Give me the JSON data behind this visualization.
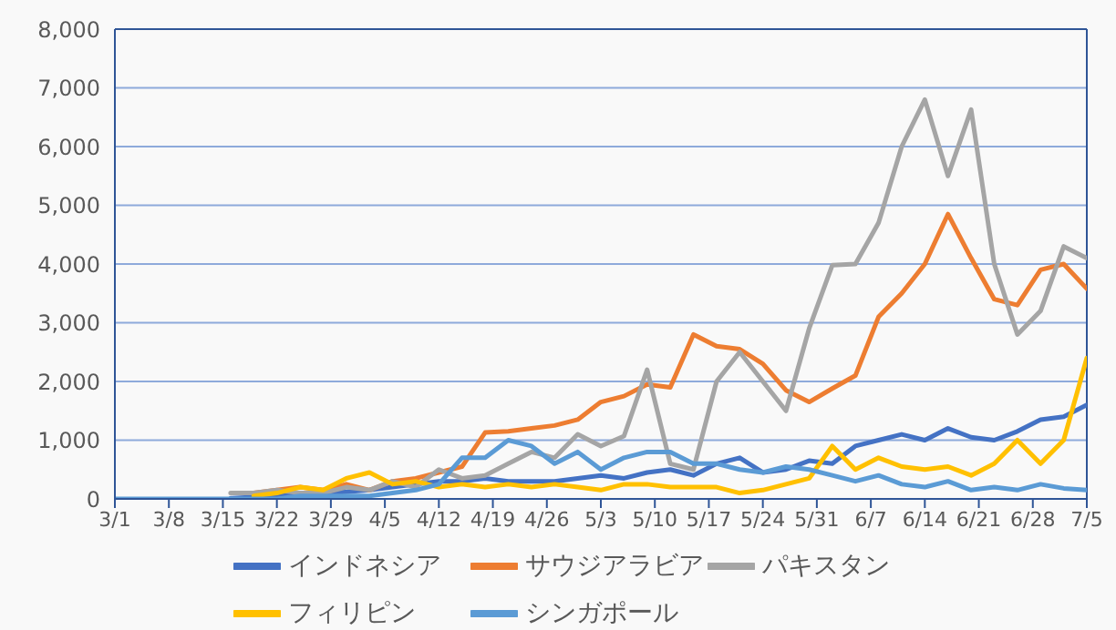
{
  "chart_data": {
    "type": "line",
    "x": [
      "--03-01",
      "--03-04",
      "--03-07",
      "--03-10",
      "--03-13",
      "--03-16",
      "--03-19",
      "--03-22",
      "--03-25",
      "--03-28",
      "--03-31",
      "--04-03",
      "--04-06",
      "--04-09",
      "--04-12",
      "--04-15",
      "--04-18",
      "--04-21",
      "--04-24",
      "--04-27",
      "--04-30",
      "--05-03",
      "--05-06",
      "--05-09",
      "--05-12",
      "--05-15",
      "--05-18",
      "--05-21",
      "--05-24",
      "--05-27",
      "--05-30",
      "--06-02",
      "--06-05",
      "--06-08",
      "--06-11",
      "--06-14",
      "--06-17",
      "--06-20",
      "--06-23",
      "--06-26",
      "--06-29",
      "--07-02",
      "--07-05"
    ],
    "series": [
      {
        "name": "インドネシア",
        "color": "#4472c4",
        "values": [
          null,
          null,
          null,
          null,
          null,
          10,
          30,
          60,
          100,
          100,
          120,
          150,
          200,
          250,
          300,
          300,
          350,
          300,
          300,
          300,
          350,
          400,
          350,
          450,
          500,
          400,
          600,
          700,
          450,
          500,
          650,
          600,
          900,
          1000,
          1100,
          1000,
          1200,
          1050,
          1000,
          1150,
          1350,
          1400,
          1600
        ]
      },
      {
        "name": "サウジアラビア",
        "color": "#ed7d31",
        "values": [
          null,
          null,
          null,
          null,
          null,
          null,
          100,
          150,
          200,
          150,
          250,
          150,
          300,
          350,
          450,
          550,
          1130,
          1150,
          1200,
          1250,
          1350,
          1650,
          1750,
          1950,
          1900,
          2800,
          2600,
          2550,
          2300,
          1850,
          1650,
          1880,
          2100,
          3100,
          3500,
          4000,
          4850,
          4100,
          3400,
          3300,
          3900,
          4000,
          3580
        ]
      },
      {
        "name": "パキスタン",
        "color": "#a5a5a5",
        "values": [
          null,
          null,
          null,
          null,
          null,
          100,
          100,
          150,
          100,
          100,
          200,
          150,
          300,
          200,
          500,
          350,
          400,
          600,
          800,
          700,
          1100,
          900,
          1070,
          2200,
          600,
          500,
          2000,
          2500,
          2000,
          1500,
          2900,
          3980,
          4000,
          4700,
          6000,
          6800,
          5500,
          6630,
          4000,
          2800,
          3200,
          4300,
          4100
        ]
      },
      {
        "name": "フィリピン",
        "color": "#ffc000",
        "values": [
          null,
          null,
          null,
          null,
          null,
          null,
          50,
          100,
          200,
          150,
          350,
          450,
          250,
          300,
          200,
          250,
          200,
          250,
          200,
          250,
          200,
          150,
          250,
          250,
          200,
          200,
          200,
          100,
          150,
          250,
          350,
          900,
          500,
          700,
          550,
          500,
          550,
          400,
          600,
          1000,
          600,
          1000,
          2400
        ]
      },
      {
        "name": "シンガポール",
        "color": "#5b9bd5",
        "values": [
          0,
          0,
          0,
          0,
          0,
          0,
          0,
          0,
          50,
          50,
          50,
          50,
          100,
          150,
          250,
          700,
          700,
          1000,
          900,
          600,
          800,
          500,
          700,
          800,
          800,
          600,
          600,
          500,
          450,
          550,
          500,
          400,
          300,
          400,
          250,
          200,
          300,
          150,
          200,
          150,
          250,
          180,
          150
        ]
      }
    ],
    "xlim": [
      "--03-01",
      "--07-05"
    ],
    "xticks": [
      {
        "value": "--03-01",
        "label": "3/1"
      },
      {
        "value": "--03-08",
        "label": "3/8"
      },
      {
        "value": "--03-15",
        "label": "3/15"
      },
      {
        "value": "--03-22",
        "label": "3/22"
      },
      {
        "value": "--03-29",
        "label": "3/29"
      },
      {
        "value": "--04-05",
        "label": "4/5"
      },
      {
        "value": "--04-12",
        "label": "4/12"
      },
      {
        "value": "--04-19",
        "label": "4/19"
      },
      {
        "value": "--04-26",
        "label": "4/26"
      },
      {
        "value": "--05-03",
        "label": "5/3"
      },
      {
        "value": "--05-10",
        "label": "5/10"
      },
      {
        "value": "--05-17",
        "label": "5/17"
      },
      {
        "value": "--05-24",
        "label": "5/24"
      },
      {
        "value": "--05-31",
        "label": "5/31"
      },
      {
        "value": "--06-07",
        "label": "6/7"
      },
      {
        "value": "--06-14",
        "label": "6/14"
      },
      {
        "value": "--06-21",
        "label": "6/21"
      },
      {
        "value": "--06-28",
        "label": "6/28"
      },
      {
        "value": "--07-05",
        "label": "7/5"
      }
    ],
    "ylim": [
      0,
      8000
    ],
    "yticks": [
      0,
      {
        "value": 1000,
        "label": "1,000"
      },
      {
        "value": 2000,
        "label": "2,000"
      },
      {
        "value": 3000,
        "label": "3,000"
      },
      {
        "value": 4000,
        "label": "4,000"
      },
      {
        "value": 5000,
        "label": "5,000"
      },
      {
        "value": 6000,
        "label": "6,000"
      },
      {
        "value": 7000,
        "label": "7,000"
      },
      {
        "value": 8000,
        "label": "8,000"
      }
    ],
    "grid": "y",
    "legend": "bottom",
    "marker": "none",
    "line_style": "solid"
  }
}
